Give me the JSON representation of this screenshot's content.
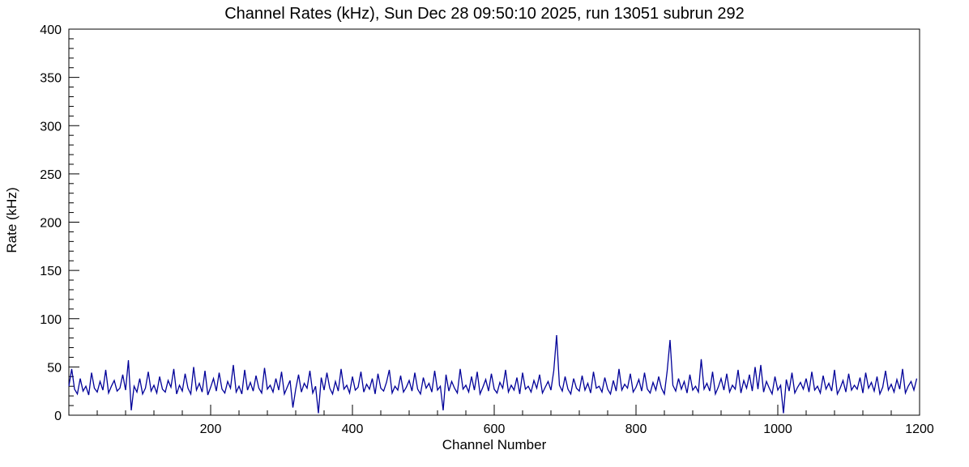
{
  "chart_data": {
    "type": "line",
    "title": "Channel Rates (kHz), Sun Dec 28 09:50:10 2025, run 13051 subrun 292",
    "xlabel": "Channel Number",
    "ylabel": "Rate (kHz)",
    "xlim": [
      0,
      1200
    ],
    "ylim": [
      0,
      400
    ],
    "x_major_ticks": [
      200,
      400,
      600,
      800,
      1000,
      1200
    ],
    "x_minor_step": 40,
    "y_major_ticks": [
      0,
      50,
      100,
      150,
      200,
      250,
      300,
      350,
      400
    ],
    "y_minor_step": 10,
    "grid": false,
    "legend": "none",
    "line_color": "#000099",
    "x_step": 4,
    "values": [
      30,
      48,
      27,
      22,
      38,
      25,
      30,
      21,
      44,
      28,
      24,
      35,
      26,
      47,
      23,
      30,
      36,
      25,
      28,
      42,
      26,
      57,
      5,
      30,
      24,
      38,
      22,
      28,
      45,
      25,
      31,
      23,
      40,
      27,
      24,
      36,
      29,
      48,
      22,
      31,
      25,
      43,
      28,
      22,
      50,
      26,
      33,
      24,
      46,
      21,
      29,
      38,
      25,
      44,
      27,
      23,
      35,
      28,
      52,
      24,
      30,
      22,
      47,
      26,
      34,
      25,
      41,
      28,
      23,
      49,
      27,
      31,
      24,
      38,
      26,
      45,
      22,
      29,
      36,
      8,
      27,
      42,
      24,
      33,
      28,
      46,
      23,
      30,
      2,
      39,
      26,
      44,
      28,
      22,
      35,
      25,
      48,
      27,
      31,
      23,
      40,
      26,
      29,
      45,
      24,
      32,
      27,
      38,
      22,
      43,
      28,
      25,
      34,
      47,
      23,
      30,
      26,
      41,
      24,
      29,
      36,
      25,
      44,
      27,
      22,
      39,
      28,
      33,
      24,
      46,
      26,
      30,
      5,
      42,
      25,
      35,
      28,
      23,
      48,
      27,
      31,
      24,
      40,
      26,
      45,
      22,
      29,
      37,
      25,
      43,
      27,
      23,
      34,
      28,
      47,
      24,
      31,
      26,
      39,
      22,
      44,
      27,
      30,
      24,
      36,
      28,
      42,
      23,
      29,
      35,
      26,
      46,
      83,
      31,
      25,
      40,
      27,
      22,
      38,
      28,
      25,
      41,
      26,
      33,
      23,
      45,
      28,
      30,
      24,
      39,
      27,
      22,
      36,
      25,
      48,
      26,
      32,
      28,
      43,
      24,
      29,
      37,
      25,
      44,
      27,
      23,
      34,
      26,
      40,
      28,
      22,
      46,
      78,
      31,
      25,
      38,
      27,
      35,
      23,
      42,
      26,
      30,
      24,
      58,
      27,
      33,
      25,
      45,
      22,
      29,
      38,
      26,
      43,
      24,
      31,
      27,
      47,
      23,
      36,
      28,
      42,
      25,
      50,
      27,
      52,
      24,
      35,
      28,
      22,
      40,
      26,
      31,
      2,
      37,
      25,
      44,
      23,
      29,
      34,
      27,
      38,
      24,
      45,
      26,
      30,
      23,
      41,
      27,
      33,
      25,
      47,
      22,
      28,
      36,
      24,
      43,
      26,
      31,
      27,
      39,
      23,
      44,
      28,
      34,
      25,
      40,
      22,
      29,
      46,
      26,
      32,
      24,
      37,
      27,
      48,
      23,
      30,
      35,
      26,
      38
    ]
  }
}
